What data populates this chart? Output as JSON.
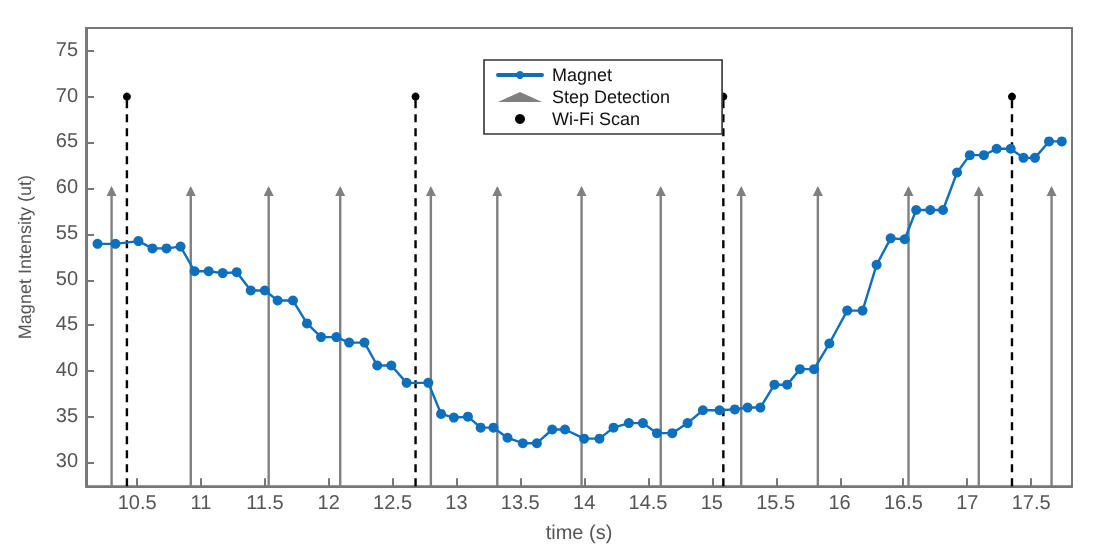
{
  "chart_data": {
    "type": "line",
    "xlabel": "time (s)",
    "ylabel": "Magnet Intensity (ut)",
    "xlim": [
      10.1,
      17.82
    ],
    "ylim": [
      27.4,
      77.5
    ],
    "xticks": [
      10.5,
      11,
      11.5,
      12,
      12.5,
      13,
      13.5,
      14,
      14.5,
      15,
      15.5,
      16,
      16.5,
      17,
      17.5
    ],
    "yticks": [
      30,
      35,
      40,
      45,
      50,
      55,
      60,
      65,
      70,
      75
    ],
    "grid": false,
    "legend": "top",
    "series": [
      {
        "name": "Magnet",
        "marker": "circle",
        "line_style": "solid",
        "color": "#0e6fbd",
        "x": [
          10.19,
          10.33,
          10.51,
          10.62,
          10.73,
          10.84,
          10.95,
          11.06,
          11.17,
          11.28,
          11.39,
          11.5,
          11.6,
          11.72,
          11.83,
          11.94,
          12.06,
          12.16,
          12.28,
          12.38,
          12.49,
          12.61,
          12.78,
          12.88,
          12.98,
          13.09,
          13.19,
          13.29,
          13.4,
          13.52,
          13.63,
          13.75,
          13.85,
          14.0,
          14.12,
          14.23,
          14.35,
          14.46,
          14.57,
          14.69,
          14.81,
          14.93,
          15.06,
          15.18,
          15.28,
          15.38,
          15.49,
          15.59,
          15.69,
          15.8,
          15.92,
          16.06,
          16.18,
          16.29,
          16.4,
          16.51,
          16.6,
          16.71,
          16.81,
          16.92,
          17.02,
          17.13,
          17.23,
          17.34,
          17.44,
          17.53,
          17.64,
          17.74
        ],
        "values": [
          53.9,
          53.9,
          54.2,
          53.4,
          53.4,
          53.6,
          50.9,
          50.9,
          50.7,
          50.8,
          48.8,
          48.8,
          47.7,
          47.7,
          45.2,
          43.7,
          43.7,
          43.1,
          43.1,
          40.6,
          40.6,
          38.7,
          38.7,
          35.3,
          34.9,
          35.0,
          33.8,
          33.8,
          32.7,
          32.1,
          32.1,
          33.6,
          33.6,
          32.6,
          32.6,
          33.8,
          34.3,
          34.3,
          33.2,
          33.2,
          34.3,
          35.7,
          35.7,
          35.8,
          36.0,
          36.0,
          38.5,
          38.5,
          40.2,
          40.2,
          43.0,
          46.6,
          46.6,
          51.6,
          54.5,
          54.4,
          57.6,
          57.6,
          57.6,
          61.7,
          63.6,
          63.6,
          64.3,
          64.3,
          63.3,
          63.3,
          65.1,
          65.1
        ]
      },
      {
        "name": "Step Detection",
        "type": "lollipop",
        "marker": "triangle",
        "line_style": "solid",
        "color": "#808080",
        "x": [
          10.3,
          10.92,
          11.53,
          12.09,
          12.8,
          13.32,
          13.98,
          14.6,
          15.23,
          15.83,
          16.54,
          17.09,
          17.66
        ],
        "values": [
          60,
          60,
          60,
          60,
          60,
          60,
          60,
          60,
          60,
          60,
          60,
          60,
          60
        ]
      },
      {
        "name": "Wi-Fi Scan",
        "type": "lollipop",
        "marker": "circle",
        "line_style": "dashed",
        "color": "#000000",
        "x": [
          10.42,
          12.68,
          15.09,
          17.35
        ],
        "values": [
          70,
          70,
          70,
          70
        ]
      }
    ]
  }
}
